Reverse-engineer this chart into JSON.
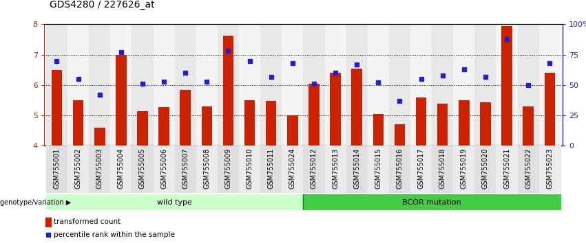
{
  "title": "GDS4280 / 227626_at",
  "samples": [
    "GSM755001",
    "GSM755002",
    "GSM755003",
    "GSM755004",
    "GSM755005",
    "GSM755006",
    "GSM755007",
    "GSM755008",
    "GSM755009",
    "GSM755010",
    "GSM755011",
    "GSM755024",
    "GSM755012",
    "GSM755013",
    "GSM755014",
    "GSM755015",
    "GSM755016",
    "GSM755017",
    "GSM755018",
    "GSM755019",
    "GSM755020",
    "GSM755021",
    "GSM755022",
    "GSM755023"
  ],
  "bar_values": [
    6.5,
    5.5,
    4.6,
    7.0,
    5.15,
    5.28,
    5.85,
    5.3,
    7.62,
    5.5,
    5.48,
    5.0,
    6.05,
    6.4,
    6.55,
    5.05,
    4.72,
    5.6,
    5.38,
    5.5,
    5.43,
    7.95,
    5.3,
    6.4
  ],
  "dot_pct": [
    70,
    55,
    42,
    77,
    51,
    53,
    60,
    53,
    78,
    70,
    57,
    68,
    51,
    60,
    67,
    52,
    37,
    55,
    58,
    63,
    57,
    88,
    50,
    68
  ],
  "wild_type_count": 12,
  "bcor_count": 12,
  "ylim_left": [
    4,
    8
  ],
  "ylim_right": [
    0,
    100
  ],
  "yticks_left": [
    4,
    5,
    6,
    7,
    8
  ],
  "yticks_right": [
    0,
    25,
    50,
    75,
    100
  ],
  "yticklabels_right": [
    "0",
    "25",
    "50",
    "75",
    "100%"
  ],
  "bar_color": "#CC2200",
  "dot_color": "#2222CC",
  "wild_type_color": "#CCFFCC",
  "bcor_color": "#44CC44",
  "wild_type_label": "wild type",
  "bcor_label": "BCOR mutation",
  "legend_bar_label": "transformed count",
  "legend_dot_label": "percentile rank within the sample",
  "genotype_label": "genotype/variation",
  "title_fontsize": 10,
  "label_fontsize": 8,
  "tick_fontsize": 7
}
